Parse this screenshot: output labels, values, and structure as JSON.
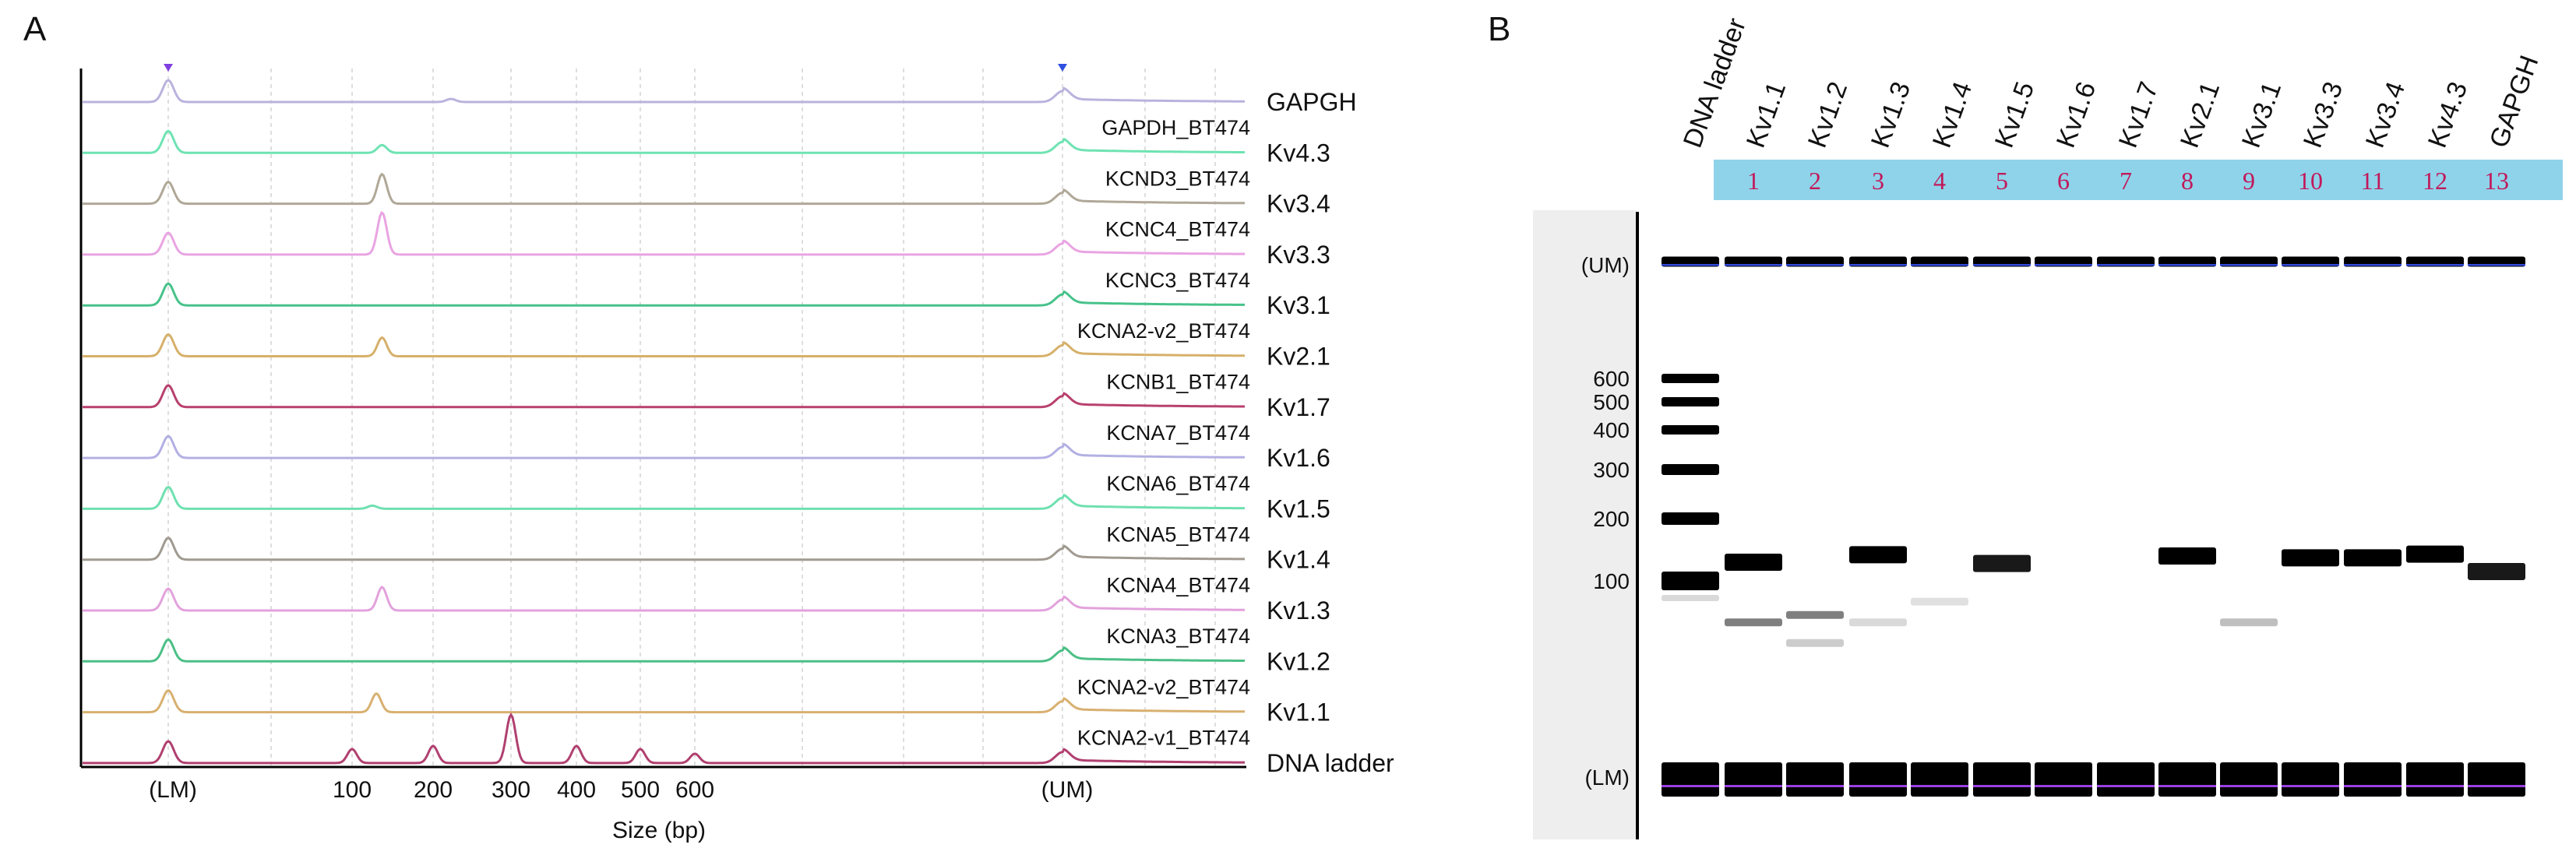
{
  "panel_a": {
    "label": "A",
    "xlabel": "Size (bp)",
    "markers": {
      "lower": "(LM)",
      "upper": "(UM)"
    },
    "ticks": [
      "100",
      "200",
      "300",
      "400",
      "500",
      "600"
    ],
    "traces": [
      {
        "name": "GAPGH",
        "sample": "GAPDH_BT474",
        "color": "#b9b3dd",
        "peak": 223,
        "peak_h": 4
      },
      {
        "name": "Kv4.3",
        "sample": "KCND3_BT474",
        "color": "#6fe3b3",
        "peak": 137,
        "peak_h": 10
      },
      {
        "name": "Kv3.4",
        "sample": "KCNC4_BT474",
        "color": "#b0a898",
        "peak": 137,
        "peak_h": 38
      },
      {
        "name": "Kv3.3",
        "sample": "KCNC3_BT474",
        "color": "#e9a4e2",
        "peak": 137,
        "peak_h": 54
      },
      {
        "name": "Kv3.1",
        "sample": "KCNA2-v2_BT474",
        "color": "#47c28a",
        "peak": 0,
        "peak_h": 0
      },
      {
        "name": "Kv2.1",
        "sample": "KCNB1_BT474",
        "color": "#d6b06a",
        "peak": 137,
        "peak_h": 24
      },
      {
        "name": "Kv1.7",
        "sample": "KCNA7_BT474",
        "color": "#b8416e",
        "peak": 0,
        "peak_h": 0
      },
      {
        "name": "Kv1.6",
        "sample": "KCNA6_BT474",
        "color": "#b3b0e3",
        "peak": 0,
        "peak_h": 0
      },
      {
        "name": "Kv1.5",
        "sample": "KCNA5_BT474",
        "color": "#6fe0b0",
        "peak": 125,
        "peak_h": 4
      },
      {
        "name": "Kv1.4",
        "sample": "KCNA4_BT474",
        "color": "#a09a90",
        "peak": 0,
        "peak_h": 0
      },
      {
        "name": "Kv1.3",
        "sample": "KCNA3_BT474",
        "color": "#e2a2dc",
        "peak": 137,
        "peak_h": 30
      },
      {
        "name": "Kv1.2",
        "sample": "KCNA2-v2_BT474",
        "color": "#4cbf86",
        "peak": 0,
        "peak_h": 0
      },
      {
        "name": "Kv1.1",
        "sample": "KCNA2-v1_BT474",
        "color": "#d8b070",
        "peak": 130,
        "peak_h": 24
      },
      {
        "name": "DNA ladder",
        "sample": "",
        "color": "#b04070",
        "peak": 0,
        "peak_h": 0
      }
    ]
  },
  "panel_b": {
    "label": "B",
    "lanes": [
      "DNA ladder",
      "Kv1.1",
      "Kv1.2",
      "Kv1.3",
      "Kv1.4",
      "Kv1.5",
      "Kv1.6",
      "Kv1.7",
      "Kv2.1",
      "Kv3.1",
      "Kv3.3",
      "Kv3.4",
      "Kv4.3",
      "GAPGH"
    ],
    "lane_numbers": [
      "1",
      "2",
      "3",
      "4",
      "5",
      "6",
      "7",
      "8",
      "9",
      "10",
      "11",
      "12",
      "13"
    ],
    "markers": {
      "upper": "(UM)",
      "lower": "(LM)"
    },
    "size_labels": [
      "600",
      "500",
      "400",
      "300",
      "200",
      "100"
    ],
    "lane_color": "#8fd3ea",
    "number_color": "#c2185b",
    "bands": [
      {
        "lane": "Kv1.1",
        "bands": [
          {
            "size": 130,
            "w": 1
          },
          {
            "size": 72,
            "w": 0.5
          }
        ]
      },
      {
        "lane": "Kv1.2",
        "bands": [
          {
            "size": 77,
            "w": 0.5
          },
          {
            "size": 58,
            "w": 0.2
          }
        ]
      },
      {
        "lane": "Kv1.3",
        "bands": [
          {
            "size": 142,
            "w": 1
          },
          {
            "size": 72,
            "w": 0.15
          }
        ]
      },
      {
        "lane": "Kv1.4",
        "bands": [
          {
            "size": 86,
            "w": 0.12
          }
        ]
      },
      {
        "lane": "Kv1.5",
        "bands": [
          {
            "size": 128,
            "w": 0.9
          }
        ]
      },
      {
        "lane": "Kv1.6",
        "bands": []
      },
      {
        "lane": "Kv1.7",
        "bands": []
      },
      {
        "lane": "Kv2.1",
        "bands": [
          {
            "size": 140,
            "w": 1
          }
        ]
      },
      {
        "lane": "Kv3.1",
        "bands": [
          {
            "size": 72,
            "w": 0.25
          }
        ]
      },
      {
        "lane": "Kv3.3",
        "bands": [
          {
            "size": 137,
            "w": 1
          }
        ]
      },
      {
        "lane": "Kv3.4",
        "bands": [
          {
            "size": 137,
            "w": 1
          }
        ]
      },
      {
        "lane": "Kv4.3",
        "bands": [
          {
            "size": 143,
            "w": 1
          }
        ]
      },
      {
        "lane": "GAPGH",
        "bands": [
          {
            "size": 115,
            "w": 0.9
          }
        ]
      }
    ]
  }
}
